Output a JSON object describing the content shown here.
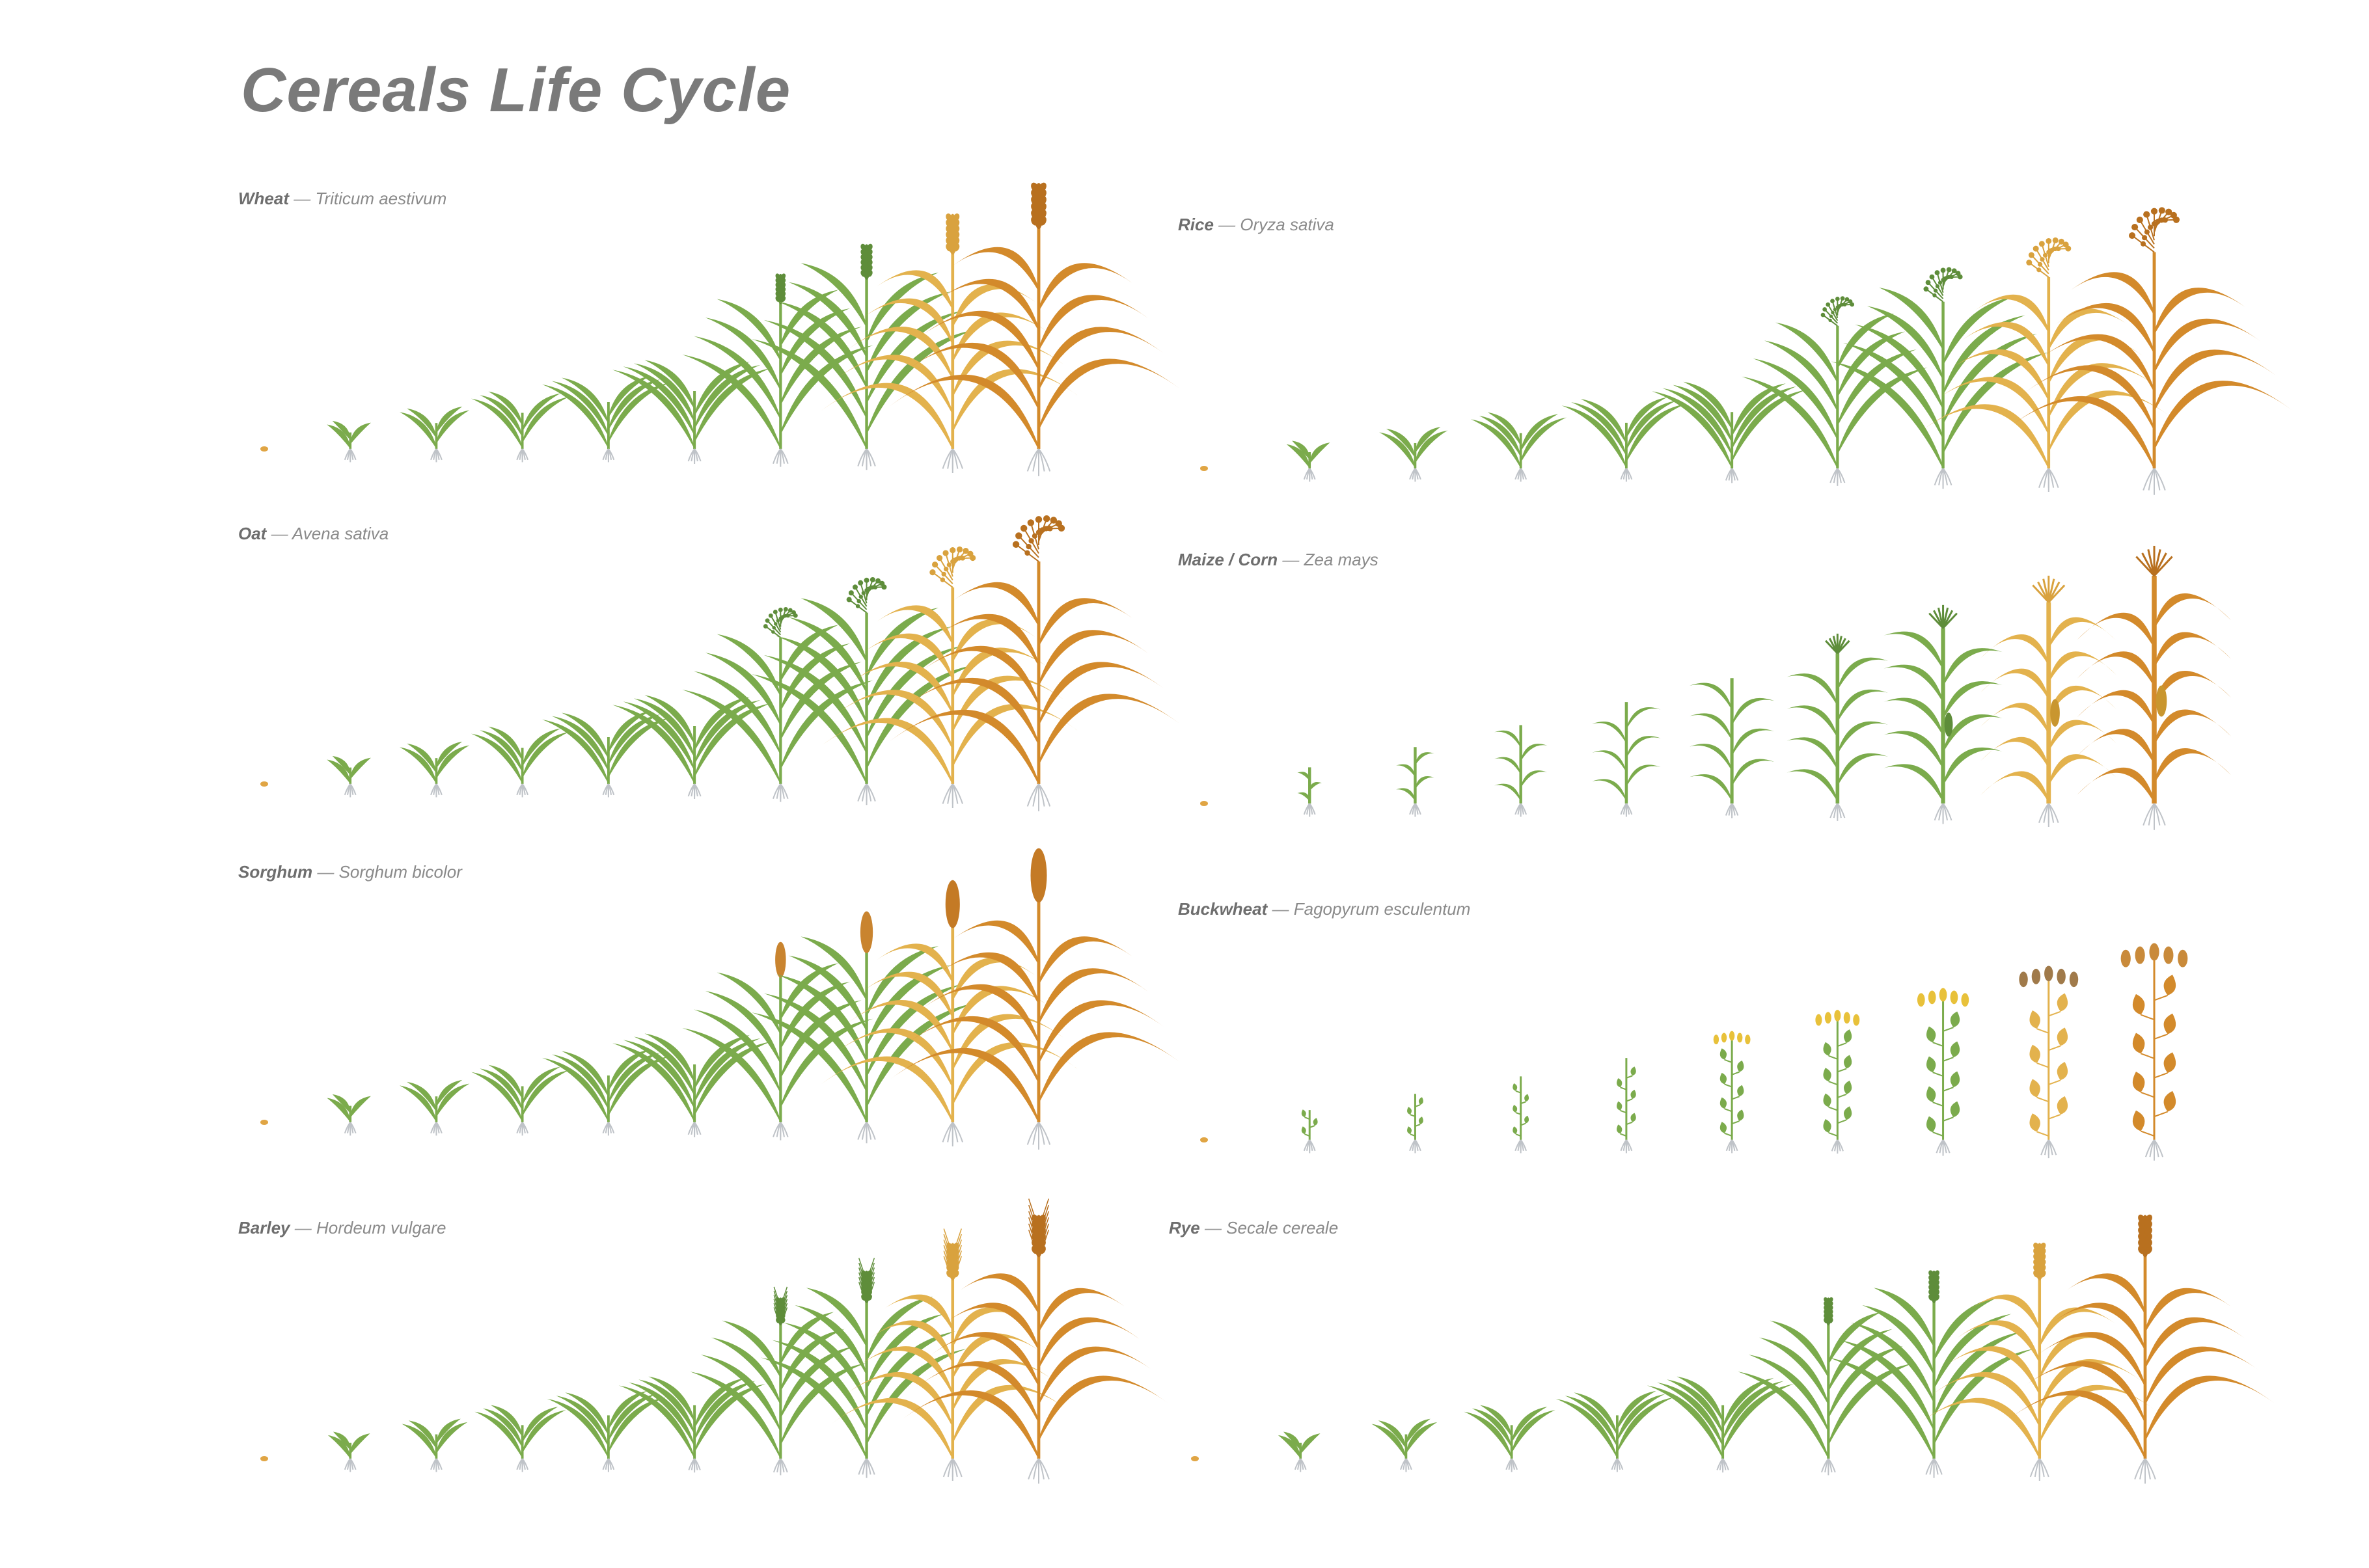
{
  "title": "Cereals Life Cycle",
  "dash": "—",
  "colors": {
    "green": "#7bab4c",
    "dark_green": "#5e8d3a",
    "yellow": "#e3b24d",
    "orange": "#d38a2b",
    "brown": "#9a6a3c",
    "root": "#bfc3c8",
    "seed": "#e0a544"
  },
  "crops": [
    {
      "id": "wheat",
      "common": "Wheat",
      "latin": "Triticum aestivum",
      "kind": "grass",
      "head": "spike"
    },
    {
      "id": "rice",
      "common": "Rice",
      "latin": "Oryza sativa",
      "kind": "grass",
      "head": "panicle"
    },
    {
      "id": "oat",
      "common": "Oat",
      "latin": "Avena sativa",
      "kind": "grass",
      "head": "oat"
    },
    {
      "id": "maize",
      "common": "Maize / Corn",
      "latin": "Zea mays",
      "kind": "maize",
      "head": "tassel"
    },
    {
      "id": "sorghum",
      "common": "Sorghum",
      "latin": "Sorghum bicolor",
      "kind": "sorghum",
      "head": "sorghum"
    },
    {
      "id": "buckwheat",
      "common": "Buckwheat",
      "latin": "Fagopyrum esculentum",
      "kind": "broadleaf",
      "head": "flowers"
    },
    {
      "id": "barley",
      "common": "Barley",
      "latin": "Hordeum vulgare",
      "kind": "grass",
      "head": "awned"
    },
    {
      "id": "rye",
      "common": "Rye",
      "latin": "Secale cereale",
      "kind": "grass",
      "head": "spike"
    }
  ]
}
